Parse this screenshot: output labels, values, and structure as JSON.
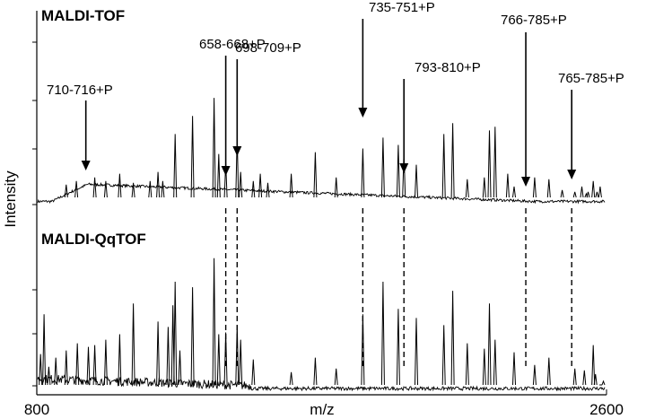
{
  "chart_data": {
    "type": "line",
    "xlabel": "m/z",
    "ylabel": "Intensity",
    "xlim": [
      800,
      2600
    ],
    "xticks": [
      800,
      2600
    ],
    "ylim": [
      0,
      1
    ],
    "grid": false,
    "panels": [
      {
        "label": "MALDI-TOF",
        "baseline": 0.05,
        "peaks": [
          {
            "mz": 893,
            "h": 0.1
          },
          {
            "mz": 925,
            "h": 0.12
          },
          {
            "mz": 983,
            "h": 0.14
          },
          {
            "mz": 1018,
            "h": 0.12
          },
          {
            "mz": 1062,
            "h": 0.16
          },
          {
            "mz": 1105,
            "h": 0.11
          },
          {
            "mz": 1183,
            "h": 0.17
          },
          {
            "mz": 1158,
            "h": 0.12
          },
          {
            "mz": 1198,
            "h": 0.12
          },
          {
            "mz": 1237,
            "h": 0.38
          },
          {
            "mz": 1292,
            "h": 0.48
          },
          {
            "mz": 1360,
            "h": 0.58
          },
          {
            "mz": 1375,
            "h": 0.27
          },
          {
            "mz": 1397,
            "h": 0.22
          },
          {
            "mz": 1433,
            "h": 0.37
          },
          {
            "mz": 1444,
            "h": 0.17
          },
          {
            "mz": 1484,
            "h": 0.12
          },
          {
            "mz": 1506,
            "h": 0.16
          },
          {
            "mz": 1530,
            "h": 0.11
          },
          {
            "mz": 1604,
            "h": 0.16
          },
          {
            "mz": 1680,
            "h": 0.28
          },
          {
            "mz": 1746,
            "h": 0.14
          },
          {
            "mz": 1830,
            "h": 0.3
          },
          {
            "mz": 1894,
            "h": 0.36
          },
          {
            "mz": 1942,
            "h": 0.32
          },
          {
            "mz": 1960,
            "h": 0.28
          },
          {
            "mz": 1999,
            "h": 0.21
          },
          {
            "mz": 2086,
            "h": 0.38
          },
          {
            "mz": 2114,
            "h": 0.44
          },
          {
            "mz": 2160,
            "h": 0.13
          },
          {
            "mz": 2214,
            "h": 0.14
          },
          {
            "mz": 2230,
            "h": 0.4
          },
          {
            "mz": 2248,
            "h": 0.42
          },
          {
            "mz": 2288,
            "h": 0.16
          },
          {
            "mz": 2308,
            "h": 0.09
          },
          {
            "mz": 2373,
            "h": 0.14
          },
          {
            "mz": 2418,
            "h": 0.13
          },
          {
            "mz": 2500,
            "h": 0.06
          },
          {
            "mz": 2522,
            "h": 0.09
          },
          {
            "mz": 2558,
            "h": 0.12
          },
          {
            "mz": 2570,
            "h": 0.06
          },
          {
            "mz": 2536,
            "h": 0.05
          },
          {
            "mz": 2542,
            "h": 0.06
          },
          {
            "mz": 2460,
            "h": 0.07
          },
          {
            "mz": 2580,
            "h": 0.09
          }
        ]
      },
      {
        "label": "MALDI-QqTOF",
        "baseline": 0.0,
        "peaks": [
          {
            "mz": 812,
            "h": 0.2
          },
          {
            "mz": 823,
            "h": 0.42
          },
          {
            "mz": 838,
            "h": 0.13
          },
          {
            "mz": 860,
            "h": 0.18
          },
          {
            "mz": 893,
            "h": 0.22
          },
          {
            "mz": 928,
            "h": 0.26
          },
          {
            "mz": 963,
            "h": 0.24
          },
          {
            "mz": 983,
            "h": 0.25
          },
          {
            "mz": 1018,
            "h": 0.28
          },
          {
            "mz": 1062,
            "h": 0.31
          },
          {
            "mz": 1105,
            "h": 0.48
          },
          {
            "mz": 1183,
            "h": 0.38
          },
          {
            "mz": 1215,
            "h": 0.35
          },
          {
            "mz": 1230,
            "h": 0.47
          },
          {
            "mz": 1237,
            "h": 0.6
          },
          {
            "mz": 1252,
            "h": 0.22
          },
          {
            "mz": 1292,
            "h": 0.57
          },
          {
            "mz": 1360,
            "h": 0.73
          },
          {
            "mz": 1375,
            "h": 0.31
          },
          {
            "mz": 1397,
            "h": 0.32
          },
          {
            "mz": 1433,
            "h": 0.36
          },
          {
            "mz": 1444,
            "h": 0.28
          },
          {
            "mz": 1484,
            "h": 0.17
          },
          {
            "mz": 1604,
            "h": 0.1
          },
          {
            "mz": 1680,
            "h": 0.18
          },
          {
            "mz": 1746,
            "h": 0.12
          },
          {
            "mz": 1830,
            "h": 0.42
          },
          {
            "mz": 1894,
            "h": 0.6
          },
          {
            "mz": 1942,
            "h": 0.45
          },
          {
            "mz": 1999,
            "h": 0.4
          },
          {
            "mz": 2086,
            "h": 0.36
          },
          {
            "mz": 2114,
            "h": 0.55
          },
          {
            "mz": 2160,
            "h": 0.26
          },
          {
            "mz": 2214,
            "h": 0.23
          },
          {
            "mz": 2230,
            "h": 0.48
          },
          {
            "mz": 2248,
            "h": 0.28
          },
          {
            "mz": 2308,
            "h": 0.21
          },
          {
            "mz": 2373,
            "h": 0.14
          },
          {
            "mz": 2418,
            "h": 0.18
          },
          {
            "mz": 2500,
            "h": 0.12
          },
          {
            "mz": 2530,
            "h": 0.11
          },
          {
            "mz": 2558,
            "h": 0.25
          },
          {
            "mz": 2565,
            "h": 0.09
          },
          {
            "mz": 2582,
            "h": 0.03
          },
          {
            "mz": 2590,
            "h": 0.05
          }
        ]
      }
    ],
    "annotations": [
      {
        "text": "710-716+P",
        "mz": 955,
        "dashed": false
      },
      {
        "text": "658-668+P",
        "mz": 1397,
        "dashed": true
      },
      {
        "text": "698-709+P",
        "mz": 1433,
        "dashed": true
      },
      {
        "text": "735-751+P",
        "mz": 1830,
        "dashed": true
      },
      {
        "text": "793-810+P",
        "mz": 1960,
        "dashed": true
      },
      {
        "text": "766-785+P",
        "mz": 2345,
        "dashed": true
      },
      {
        "text": "765-785+P",
        "mz": 2490,
        "dashed": true
      }
    ]
  }
}
